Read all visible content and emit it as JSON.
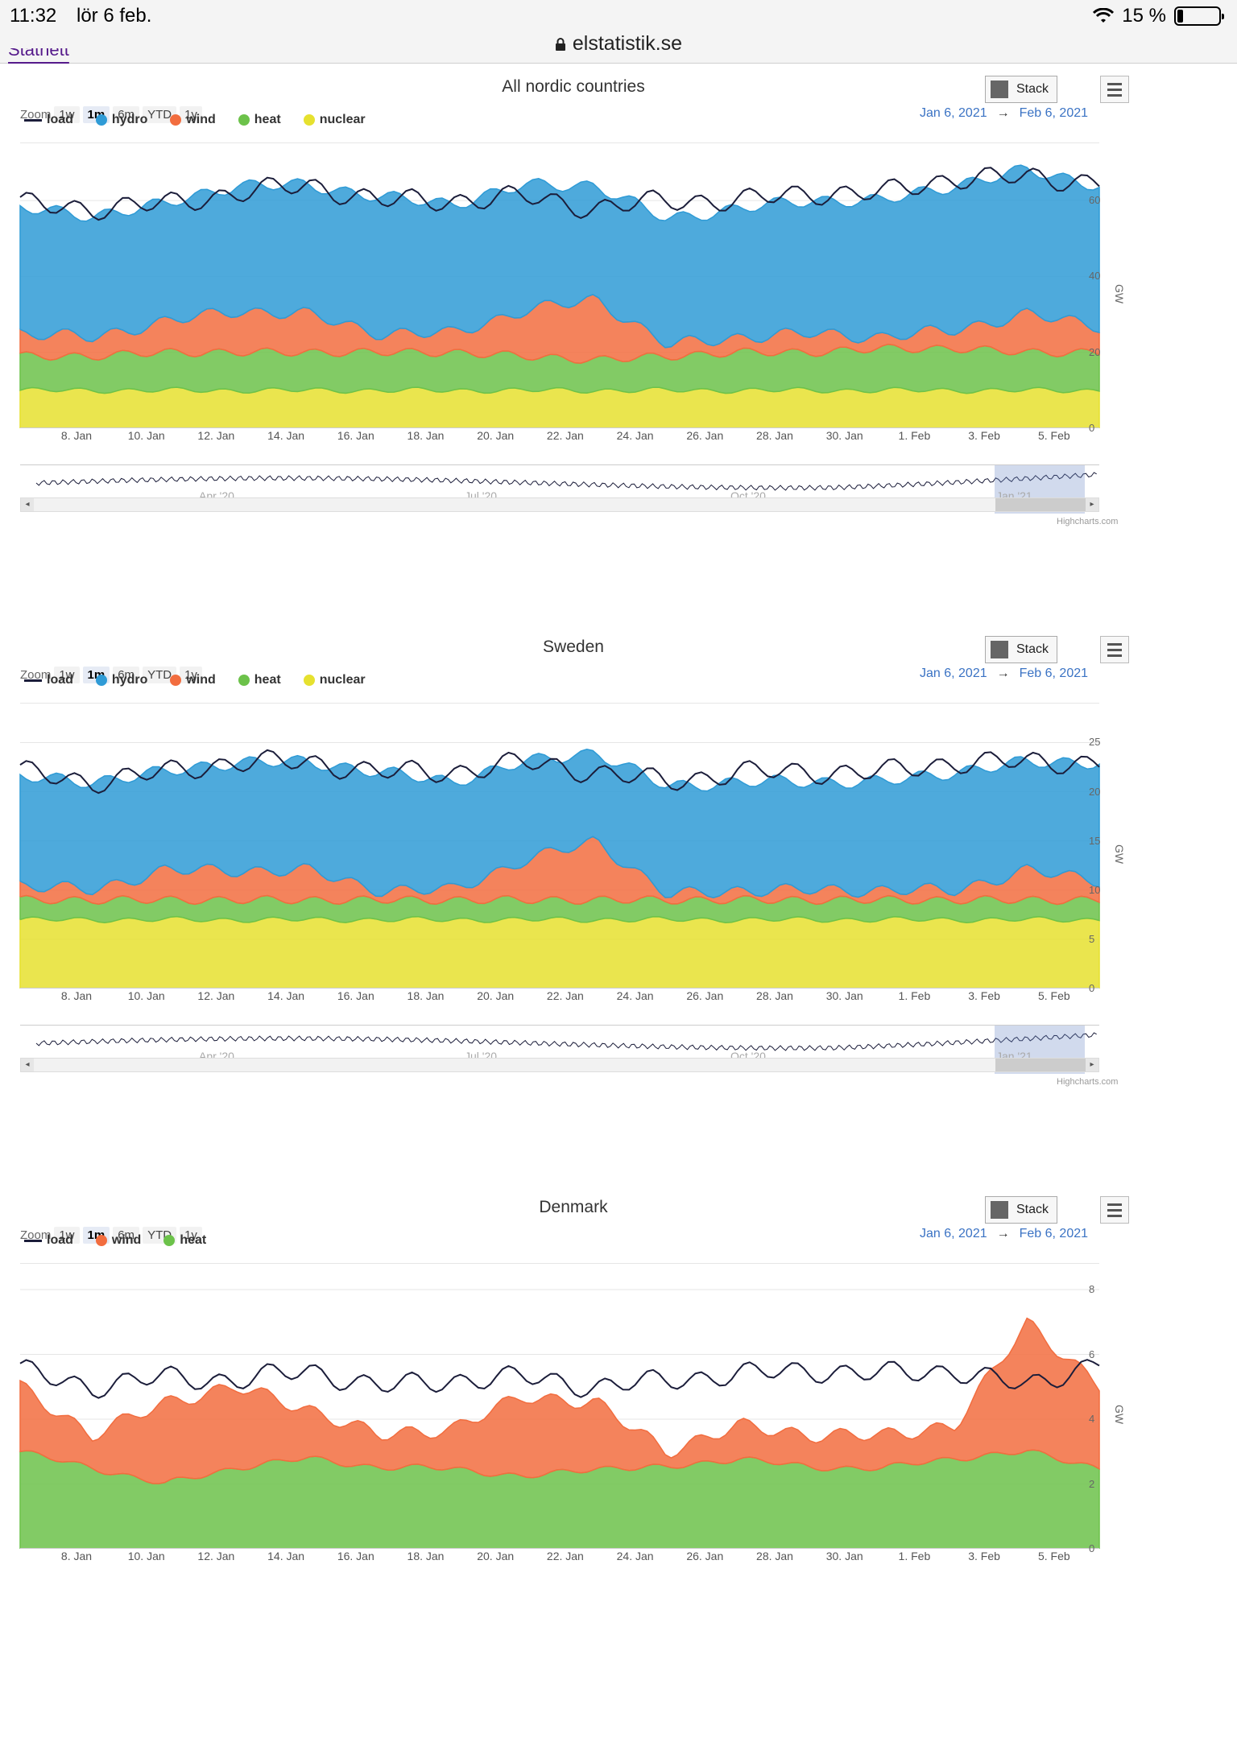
{
  "status": {
    "time": "11:32",
    "date": "lör 6 feb.",
    "battery": "15 %",
    "url": "elstatistik.se"
  },
  "prev_link": "Statnett",
  "zoom": {
    "label": "Zoom",
    "buttons": [
      "1w",
      "1m",
      "6m",
      "YTD",
      "1y"
    ],
    "selected": "1m"
  },
  "daterange": {
    "from": "Jan 6, 2021",
    "arrow": "→",
    "to": "Feb 6, 2021"
  },
  "stack_label": "Stack",
  "xticks": [
    "8. Jan",
    "10. Jan",
    "12. Jan",
    "14. Jan",
    "16. Jan",
    "18. Jan",
    "20. Jan",
    "22. Jan",
    "24. Jan",
    "26. Jan",
    "28. Jan",
    "30. Jan",
    "1. Feb",
    "3. Feb",
    "5. Feb"
  ],
  "nav_labels": [
    "Apr '20",
    "Jul '20",
    "Oct '20",
    "Jan '21"
  ],
  "credit": "Highcharts.com",
  "y_unit": "GW",
  "colors": {
    "load": "#1b1d3a",
    "hydro": "#2f9bd6",
    "wind": "#f26d3f",
    "heat": "#6cc24a",
    "nuclear": "#e6e12f"
  },
  "panels": [
    {
      "title": "All nordic countries",
      "legend": [
        "load",
        "hydro",
        "wind",
        "heat",
        "nuclear"
      ],
      "yticks": [
        "0",
        "20",
        "40",
        "60"
      ],
      "ymax": 70
    },
    {
      "title": "Sweden",
      "legend": [
        "load",
        "hydro",
        "wind",
        "heat",
        "nuclear"
      ],
      "yticks": [
        "0",
        "5",
        "10",
        "15",
        "20",
        "25"
      ],
      "ymax": 27
    },
    {
      "title": "Denmark",
      "legend": [
        "load",
        "wind",
        "heat"
      ],
      "yticks": [
        "0",
        "2",
        "4",
        "6",
        "8"
      ],
      "ymax": 8.2
    }
  ],
  "chart_data": [
    {
      "type": "area",
      "title": "All nordic countries",
      "x_range": [
        "Jan 6, 2021",
        "Feb 6, 2021"
      ],
      "ylabel": "GW",
      "ylim": [
        0,
        70
      ],
      "series": [
        {
          "name": "nuclear",
          "values": [
            10,
            10,
            10,
            10,
            10,
            10,
            10,
            10,
            10,
            10,
            10,
            10,
            10,
            10,
            10,
            10
          ]
        },
        {
          "name": "heat",
          "values": [
            9,
            9,
            10,
            10,
            10,
            10,
            10,
            9,
            8,
            9,
            10,
            10,
            11,
            11,
            10,
            10
          ]
        },
        {
          "name": "wind",
          "values": [
            6,
            5,
            8,
            11,
            10,
            5,
            5,
            12,
            16,
            3,
            4,
            5,
            3,
            5,
            10,
            7
          ]
        },
        {
          "name": "hydro",
          "values": [
            33,
            32,
            31,
            33,
            34,
            36,
            34,
            33,
            30,
            33,
            34,
            35,
            36,
            38,
            38,
            37
          ]
        },
        {
          "name": "load",
          "values": [
            59,
            58,
            59,
            62,
            64,
            60,
            60,
            61,
            58,
            60,
            60,
            62,
            62,
            66,
            66,
            65
          ]
        }
      ]
    },
    {
      "type": "area",
      "title": "Sweden",
      "x_range": [
        "Jan 6, 2021",
        "Feb 6, 2021"
      ],
      "ylabel": "GW",
      "ylim": [
        0,
        27
      ],
      "series": [
        {
          "name": "nuclear",
          "values": [
            7,
            7,
            7,
            7,
            7,
            7,
            7,
            7,
            7,
            7,
            7,
            7,
            7,
            7,
            7,
            7
          ]
        },
        {
          "name": "heat",
          "values": [
            2,
            2,
            2,
            2,
            2,
            2,
            2,
            2,
            2,
            2,
            2,
            2,
            2,
            2,
            2,
            2
          ]
        },
        {
          "name": "wind",
          "values": [
            1.5,
            1,
            3,
            3,
            3,
            1,
            1,
            4,
            6,
            0.5,
            1,
            1,
            1,
            1,
            3,
            2
          ]
        },
        {
          "name": "hydro",
          "values": [
            11,
            11,
            10,
            11,
            11,
            12,
            11,
            10,
            9,
            11,
            11,
            11,
            11,
            12,
            11,
            12
          ]
        },
        {
          "name": "load",
          "values": [
            22,
            21,
            22,
            23,
            23,
            22,
            22,
            23,
            22,
            21,
            22,
            22,
            22,
            23,
            23,
            23
          ]
        }
      ]
    },
    {
      "type": "area",
      "title": "Denmark",
      "x_range": [
        "Jan 6, 2021",
        "Feb 6, 2021"
      ],
      "ylabel": "GW",
      "ylim": [
        0,
        8.2
      ],
      "series": [
        {
          "name": "heat",
          "values": [
            3,
            2.5,
            2,
            2.5,
            2.8,
            2.5,
            2.5,
            2.2,
            2.5,
            2.5,
            2.8,
            2.5,
            2.5,
            2.8,
            3,
            2.5
          ]
        },
        {
          "name": "wind",
          "values": [
            2,
            1,
            2.5,
            2.5,
            1.5,
            1,
            1.2,
            2.5,
            2,
            0.5,
            1,
            1,
            1,
            1,
            4,
            2.5
          ]
        },
        {
          "name": "load",
          "values": [
            5.5,
            5,
            5.3,
            5.2,
            5.5,
            5,
            5.2,
            5.3,
            5,
            5.2,
            5.4,
            5.5,
            5.4,
            5.5,
            5,
            5.8
          ]
        }
      ]
    }
  ]
}
